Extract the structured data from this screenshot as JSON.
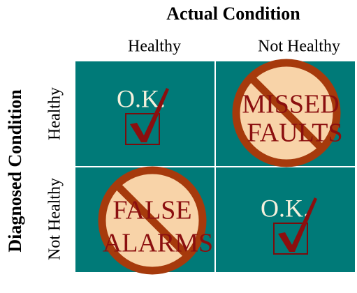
{
  "header": {
    "title": "Actual Condition",
    "columns": [
      "Healthy",
      "Not Healthy"
    ]
  },
  "side": {
    "title": "Diagnosed Condition",
    "rows": [
      "Healthy",
      "Not Healthy"
    ]
  },
  "cells": [
    [
      {
        "lines": [
          "O.K."
        ]
      },
      {
        "lines": [
          "MISSED",
          "FAULTS"
        ]
      }
    ],
    [
      {
        "lines": [
          "FALSE",
          "ALARMS"
        ]
      },
      {
        "lines": [
          "O.K."
        ]
      }
    ]
  ]
}
